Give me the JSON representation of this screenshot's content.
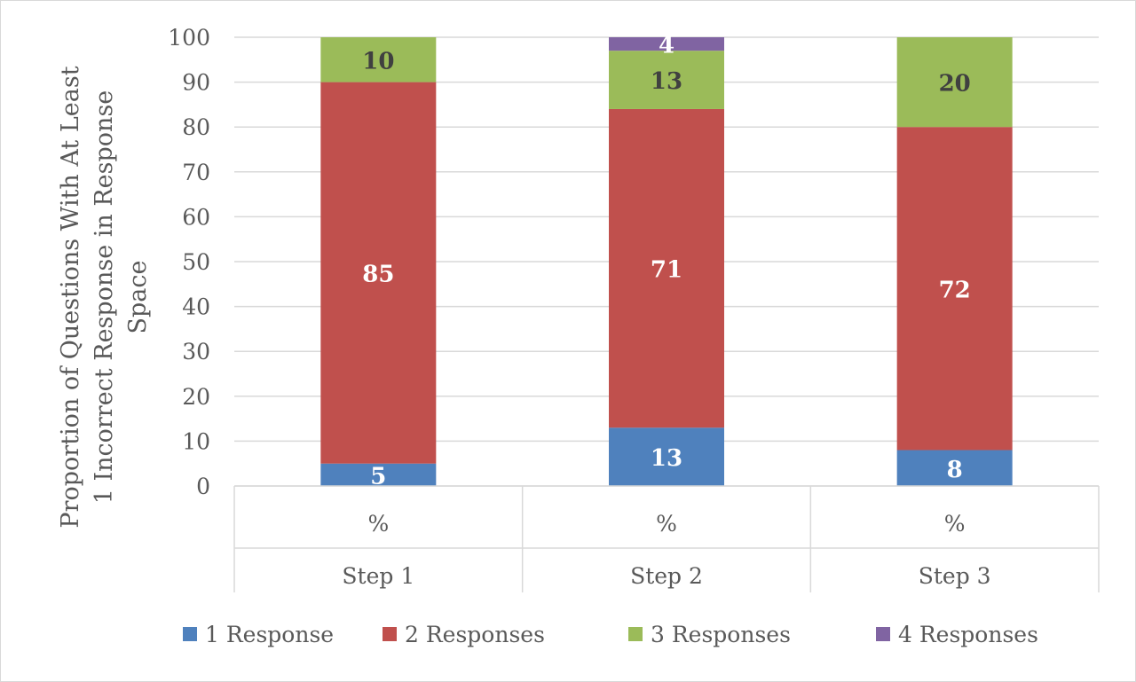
{
  "chart_data": {
    "type": "bar",
    "stacked": true,
    "categories": [
      "Step 1",
      "Step 2",
      "Step 3"
    ],
    "category_sub_labels": [
      "%",
      "%",
      "%"
    ],
    "series": [
      {
        "name": "1 Response",
        "color": "#4F81BD",
        "values": [
          5,
          13,
          8
        ],
        "label_color": "#ffffff"
      },
      {
        "name": "2 Responses",
        "color": "#C0504D",
        "values": [
          85,
          71,
          72
        ],
        "label_color": "#ffffff"
      },
      {
        "name": "3 Responses",
        "color": "#9BBB59",
        "values": [
          10,
          13,
          20
        ],
        "label_color": "#404040"
      },
      {
        "name": "4 Responses",
        "color": "#8064A2",
        "values": [
          0,
          4,
          0
        ],
        "label_color": "#ffffff"
      }
    ],
    "ylabel_lines": [
      "Proportion of Questions With At Least",
      "1 Incorrect Response in Response",
      "Space"
    ],
    "ylim": [
      0,
      100
    ],
    "yticks": [
      0,
      10,
      20,
      30,
      40,
      50,
      60,
      70,
      80,
      90,
      100
    ],
    "grid": true,
    "legend": "bottom"
  }
}
